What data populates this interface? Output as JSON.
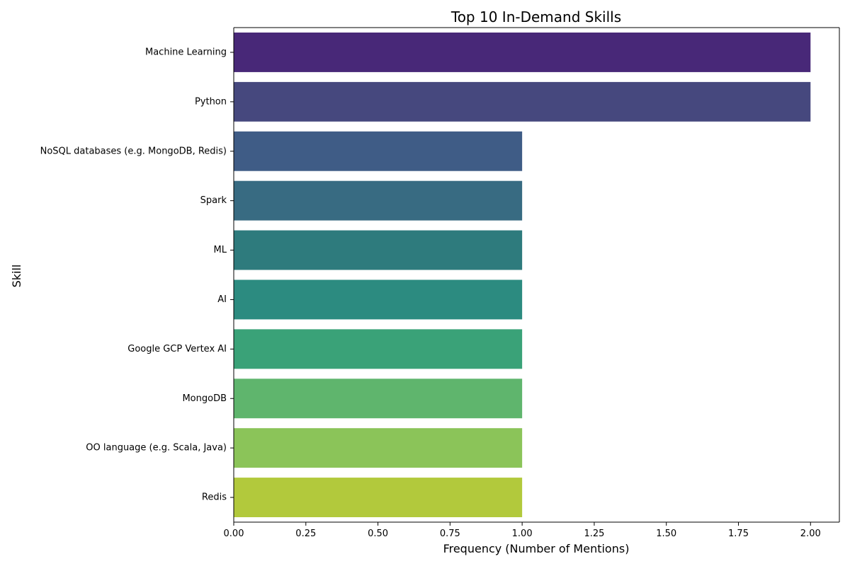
{
  "chart_data": {
    "type": "bar",
    "orientation": "horizontal",
    "title": "Top 10 In-Demand Skills",
    "xlabel": "Frequency (Number of Mentions)",
    "ylabel": "Skill",
    "xlim": [
      0,
      2.1
    ],
    "xticks": [
      "0.00",
      "0.25",
      "0.50",
      "0.75",
      "1.00",
      "1.25",
      "1.50",
      "1.75",
      "2.00"
    ],
    "grid": false,
    "legend": "none",
    "categories": [
      "Machine Learning",
      "Python",
      "NoSQL databases (e.g. MongoDB, Redis)",
      "Spark",
      "ML",
      "AI",
      "Google GCP Vertex AI",
      "MongoDB",
      "OO language (e.g. Scala, Java)",
      "Redis"
    ],
    "values": [
      2,
      2,
      1,
      1,
      1,
      1,
      1,
      1,
      1,
      1
    ],
    "colors": [
      "#482878",
      "#46487e",
      "#3f5c86",
      "#386b82",
      "#2e7b7d",
      "#2c8b80",
      "#3aa278",
      "#5fb56d",
      "#8bc459",
      "#b2c93c"
    ]
  }
}
